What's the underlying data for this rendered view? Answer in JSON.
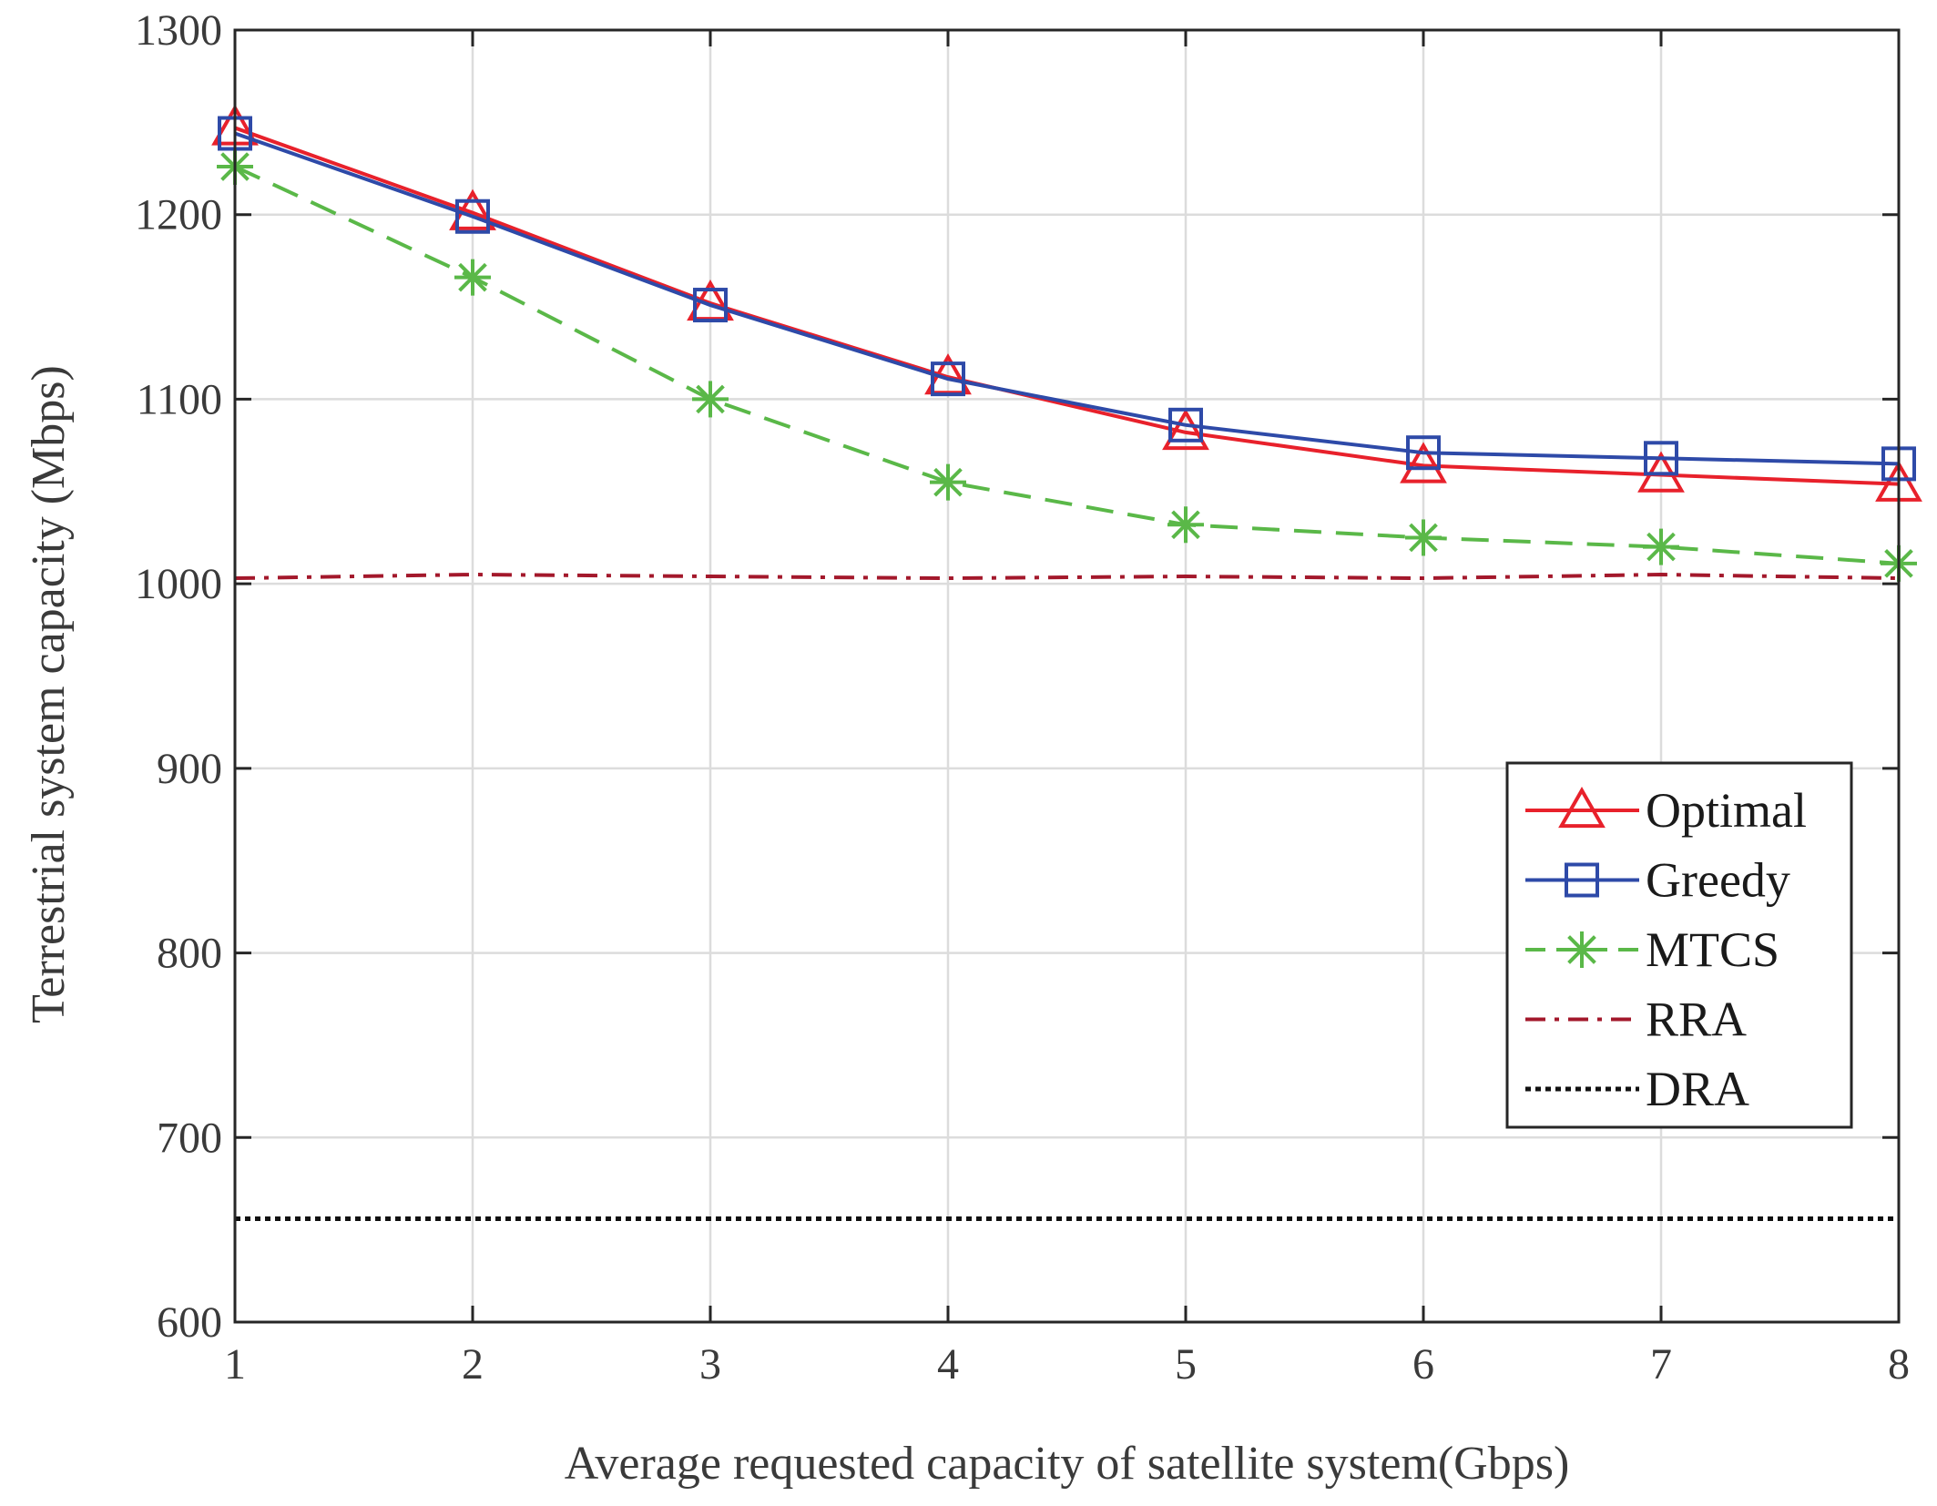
{
  "chart_data": {
    "type": "line",
    "xlabel": "Average requested capacity of satellite system(Gbps)",
    "ylabel": "Terrestrial system capacity (Mbps)",
    "xlim": [
      1,
      8
    ],
    "ylim": [
      600,
      1300
    ],
    "xticks": [
      "1",
      "2",
      "3",
      "4",
      "5",
      "6",
      "7",
      "8"
    ],
    "yticks": [
      "600",
      "700",
      "800",
      "900",
      "1000",
      "1100",
      "1200",
      "1300"
    ],
    "grid": true,
    "legend_position": "right-center",
    "x": [
      1,
      2,
      3,
      4,
      5,
      6,
      7,
      8
    ],
    "series": [
      {
        "name": "Optimal",
        "color": "#e8212b",
        "style": "solid",
        "marker": "triangle",
        "values": [
          1247,
          1201,
          1152,
          1112,
          1082,
          1064,
          1059,
          1054
        ]
      },
      {
        "name": "Greedy",
        "color": "#2e4aa8",
        "style": "solid",
        "marker": "square",
        "values": [
          1244,
          1199,
          1151,
          1111,
          1086,
          1071,
          1068,
          1065
        ]
      },
      {
        "name": "MTCS",
        "color": "#5ab848",
        "style": "dashed",
        "marker": "asterisk",
        "values": [
          1226,
          1166,
          1100,
          1055,
          1032,
          1025,
          1020,
          1011
        ]
      },
      {
        "name": "RRA",
        "color": "#a3182b",
        "style": "dashdot",
        "marker": "none",
        "values": [
          1003,
          1005,
          1004,
          1003,
          1004,
          1003,
          1005,
          1003
        ]
      },
      {
        "name": "DRA",
        "color": "#111111",
        "style": "dotted",
        "marker": "none",
        "values": [
          656,
          656,
          656,
          656,
          656,
          656,
          656,
          656
        ]
      }
    ]
  }
}
